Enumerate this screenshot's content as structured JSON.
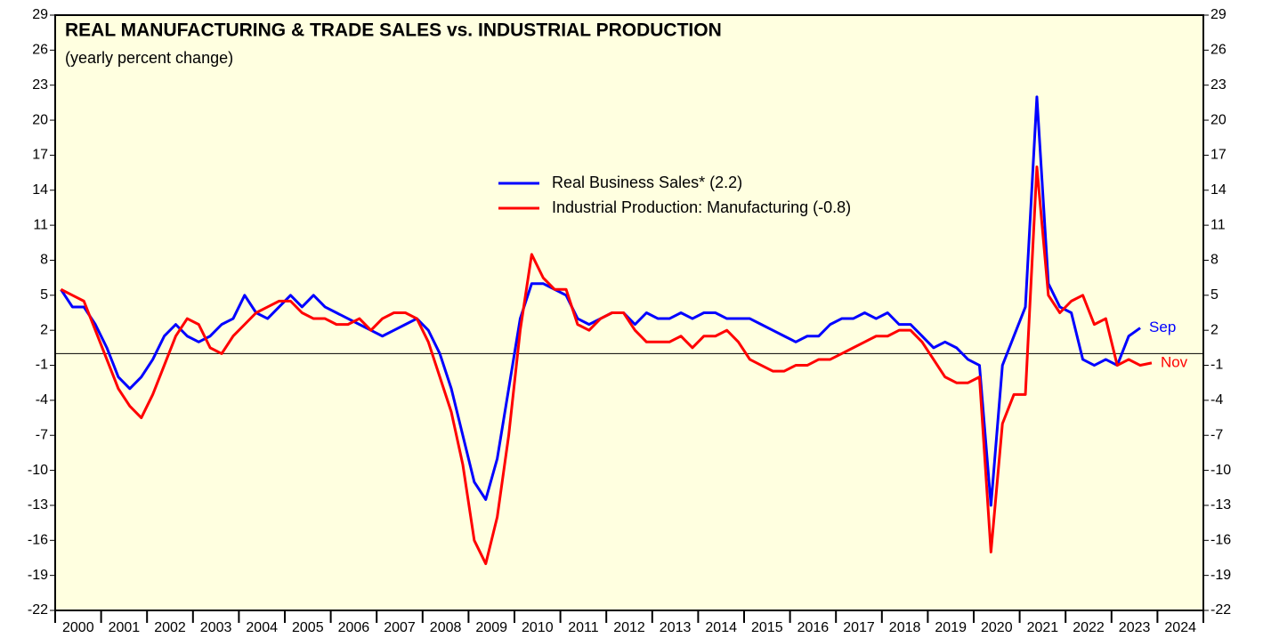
{
  "chart_data": {
    "type": "line",
    "title": "REAL MANUFACTURING & TRADE SALES vs. INDUSTRIAL PRODUCTION",
    "subtitle": "(yearly percent change)",
    "categories": [
      "2000",
      "2001",
      "2002",
      "2003",
      "2004",
      "2005",
      "2006",
      "2007",
      "2008",
      "2009",
      "2010",
      "2011",
      "2012",
      "2013",
      "2014",
      "2015",
      "2016",
      "2017",
      "2018",
      "2019",
      "2020",
      "2021",
      "2022",
      "2023",
      "2024"
    ],
    "xlim": [
      2000,
      2025
    ],
    "xticks": [
      2000,
      2001,
      2002,
      2003,
      2004,
      2005,
      2006,
      2007,
      2008,
      2009,
      2010,
      2011,
      2012,
      2013,
      2014,
      2015,
      2016,
      2017,
      2018,
      2019,
      2020,
      2021,
      2022,
      2023,
      2024,
      2025
    ],
    "ylim": [
      -22,
      29
    ],
    "yticks": [
      -22,
      -19,
      -16,
      -13,
      -10,
      -7,
      -4,
      -1,
      2,
      5,
      8,
      11,
      14,
      17,
      20,
      23,
      26,
      29
    ],
    "y2lim": [
      -22,
      29
    ],
    "y2ticks": [
      -22,
      -19,
      -16,
      -13,
      -10,
      -7,
      -4,
      -1,
      2,
      5,
      8,
      11,
      14,
      17,
      20,
      23,
      26,
      29
    ],
    "zero_line": true,
    "x": [
      2000.125,
      2000.375,
      2000.625,
      2000.875,
      2001.125,
      2001.375,
      2001.625,
      2001.875,
      2002.125,
      2002.375,
      2002.625,
      2002.875,
      2003.125,
      2003.375,
      2003.625,
      2003.875,
      2004.125,
      2004.375,
      2004.625,
      2004.875,
      2005.125,
      2005.375,
      2005.625,
      2005.875,
      2006.125,
      2006.375,
      2006.625,
      2006.875,
      2007.125,
      2007.375,
      2007.625,
      2007.875,
      2008.125,
      2008.375,
      2008.625,
      2008.875,
      2009.125,
      2009.375,
      2009.625,
      2009.875,
      2010.125,
      2010.375,
      2010.625,
      2010.875,
      2011.125,
      2011.375,
      2011.625,
      2011.875,
      2012.125,
      2012.375,
      2012.625,
      2012.875,
      2013.125,
      2013.375,
      2013.625,
      2013.875,
      2014.125,
      2014.375,
      2014.625,
      2014.875,
      2015.125,
      2015.375,
      2015.625,
      2015.875,
      2016.125,
      2016.375,
      2016.625,
      2016.875,
      2017.125,
      2017.375,
      2017.625,
      2017.875,
      2018.125,
      2018.375,
      2018.625,
      2018.875,
      2019.125,
      2019.375,
      2019.625,
      2019.875,
      2020.125,
      2020.375,
      2020.625,
      2020.875,
      2021.125,
      2021.375,
      2021.625,
      2021.875,
      2022.125,
      2022.375,
      2022.625,
      2022.875,
      2023.125,
      2023.375,
      2023.625,
      2023.875
    ],
    "series": [
      {
        "name": "Real Business Sales* (2.2)",
        "color": "#0000ff",
        "end_label": "Sep",
        "values": [
          5.5,
          4.0,
          4.0,
          2.5,
          0.5,
          -2.0,
          -3.0,
          -2.0,
          -0.5,
          1.5,
          2.5,
          1.5,
          1.0,
          1.5,
          2.5,
          3.0,
          5.0,
          3.5,
          3.0,
          4.0,
          5.0,
          4.0,
          5.0,
          4.0,
          3.5,
          3.0,
          2.5,
          2.0,
          1.5,
          2.0,
          2.5,
          3.0,
          2.0,
          0.0,
          -3.0,
          -7.0,
          -11.0,
          -12.5,
          -9.0,
          -3.0,
          3.0,
          6.0,
          6.0,
          5.5,
          5.0,
          3.0,
          2.5,
          3.0,
          3.5,
          3.5,
          2.5,
          3.5,
          3.0,
          3.0,
          3.5,
          3.0,
          3.5,
          3.5,
          3.0,
          3.0,
          3.0,
          2.5,
          2.0,
          1.5,
          1.0,
          1.5,
          1.5,
          2.5,
          3.0,
          3.0,
          3.5,
          3.0,
          3.5,
          2.5,
          2.5,
          1.5,
          0.5,
          1.0,
          0.5,
          -0.5,
          -1.0,
          -13.0,
          -1.0,
          1.5,
          4.0,
          22.0,
          6.0,
          4.0,
          3.5,
          -0.5,
          -1.0,
          -0.5,
          -1.0,
          1.5,
          2.2,
          null
        ]
      },
      {
        "name": "Industrial Production: Manufacturing (-0.8)",
        "color": "#ff0000",
        "end_label": "Nov",
        "values": [
          5.5,
          5.0,
          4.5,
          2.0,
          -0.5,
          -3.0,
          -4.5,
          -5.5,
          -3.5,
          -1.0,
          1.5,
          3.0,
          2.5,
          0.5,
          0.0,
          1.5,
          2.5,
          3.5,
          4.0,
          4.5,
          4.5,
          3.5,
          3.0,
          3.0,
          2.5,
          2.5,
          3.0,
          2.0,
          3.0,
          3.5,
          3.5,
          3.0,
          1.0,
          -2.0,
          -5.0,
          -9.5,
          -16.0,
          -18.0,
          -14.0,
          -7.0,
          2.0,
          8.5,
          6.5,
          5.5,
          5.5,
          2.5,
          2.0,
          3.0,
          3.5,
          3.5,
          2.0,
          1.0,
          1.0,
          1.0,
          1.5,
          0.5,
          1.5,
          1.5,
          2.0,
          1.0,
          -0.5,
          -1.0,
          -1.5,
          -1.5,
          -1.0,
          -1.0,
          -0.5,
          -0.5,
          0.0,
          0.5,
          1.0,
          1.5,
          1.5,
          2.0,
          2.0,
          1.0,
          -0.5,
          -2.0,
          -2.5,
          -2.5,
          -2.0,
          -17.0,
          -6.0,
          -3.5,
          -3.5,
          16.0,
          5.0,
          3.5,
          4.5,
          5.0,
          2.5,
          3.0,
          -1.0,
          -0.5,
          -1.0,
          -0.8
        ]
      }
    ]
  }
}
